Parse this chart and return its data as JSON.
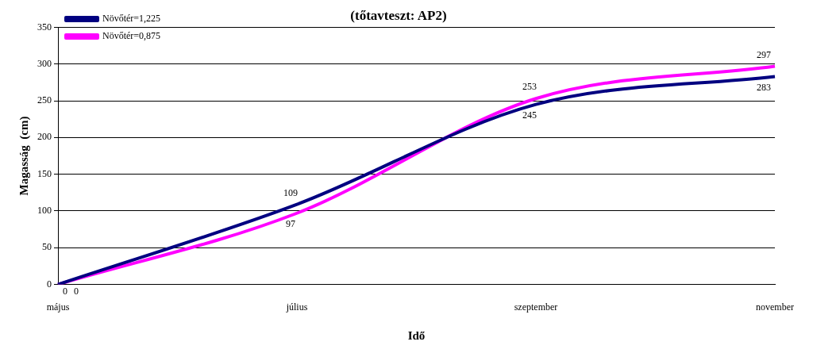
{
  "chart_data": {
    "type": "line",
    "title": "(tőtavteszt: AP2)",
    "xlabel": "Idő",
    "ylabel": "Magasság  (cm)",
    "categories": [
      "május",
      "július",
      "szeptember",
      "november"
    ],
    "series": [
      {
        "name": "Növőtér=1,225",
        "color": "#000080",
        "values": [
          0,
          109,
          245,
          283
        ]
      },
      {
        "name": "Növőtér=0,875",
        "color": "#ff00ff",
        "values": [
          0,
          97,
          253,
          297
        ]
      }
    ],
    "ylim": [
      0,
      350
    ],
    "yticks": [
      0,
      50,
      100,
      150,
      200,
      250,
      300,
      350
    ],
    "grid": "y",
    "legend": "top left",
    "data_labels": true,
    "marker": "none",
    "line_style": "solid"
  }
}
